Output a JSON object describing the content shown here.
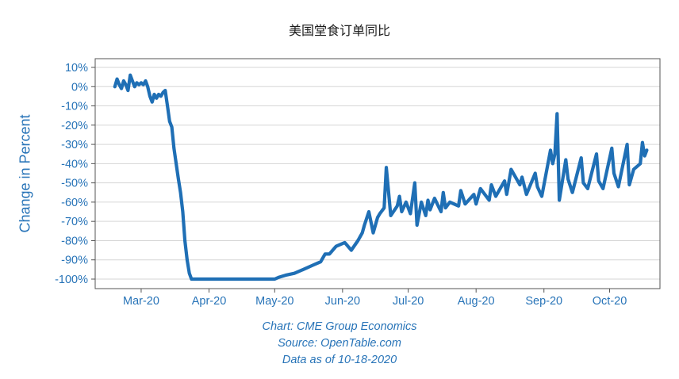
{
  "chart_data": {
    "type": "line",
    "title": "美国堂食订单同比",
    "xlabel": "",
    "ylabel": "Change in Percent",
    "xlim": [
      "2020-02-09",
      "2020-10-24"
    ],
    "ylim": [
      -100,
      10
    ],
    "yticks": [
      10,
      0,
      -10,
      -20,
      -30,
      -40,
      -50,
      -60,
      -70,
      -80,
      -90,
      -100
    ],
    "ytick_labels": [
      "10%",
      "0%",
      "-10%",
      "-20%",
      "-30%",
      "-40%",
      "-50%",
      "-60%",
      "-70%",
      "-80%",
      "-90%",
      "-100%"
    ],
    "xticks": [
      "2020-03-01",
      "2020-04-01",
      "2020-05-01",
      "2020-06-01",
      "2020-07-01",
      "2020-08-01",
      "2020-09-01",
      "2020-10-01"
    ],
    "xtick_labels": [
      "Mar-20",
      "Apr-20",
      "May-20",
      "Jun-20",
      "Jul-20",
      "Aug-20",
      "Sep-20",
      "Oct-20"
    ],
    "grid": "horizontal",
    "legend": "none",
    "color": "#1f6fb5",
    "captions": [
      "Chart: CME Group Economics",
      "Source: OpenTable.com",
      "Data as of 10-18-2020"
    ],
    "series": [
      {
        "x": [
          "2020-02-18",
          "2020-02-19",
          "2020-02-20",
          "2020-02-21",
          "2020-02-22",
          "2020-02-23",
          "2020-02-24",
          "2020-02-25",
          "2020-02-26",
          "2020-02-27",
          "2020-02-28",
          "2020-02-29",
          "2020-03-01",
          "2020-03-02",
          "2020-03-03",
          "2020-03-04",
          "2020-03-05",
          "2020-03-06",
          "2020-03-07",
          "2020-03-08",
          "2020-03-09",
          "2020-03-10",
          "2020-03-11",
          "2020-03-12",
          "2020-03-13",
          "2020-03-14",
          "2020-03-15",
          "2020-03-16",
          "2020-03-17",
          "2020-03-18",
          "2020-03-19",
          "2020-03-20",
          "2020-03-21",
          "2020-03-22",
          "2020-03-23",
          "2020-03-24",
          "2020-03-25",
          "2020-03-26",
          "2020-03-27",
          "2020-03-28",
          "2020-04-01",
          "2020-04-15",
          "2020-05-01",
          "2020-05-03",
          "2020-05-06",
          "2020-05-10",
          "2020-05-14",
          "2020-05-18",
          "2020-05-22",
          "2020-05-24",
          "2020-05-26",
          "2020-05-29",
          "2020-06-02",
          "2020-06-05",
          "2020-06-08",
          "2020-06-10",
          "2020-06-11",
          "2020-06-13",
          "2020-06-15",
          "2020-06-17",
          "2020-06-18",
          "2020-06-20",
          "2020-06-21",
          "2020-06-23",
          "2020-06-26",
          "2020-06-27",
          "2020-06-28",
          "2020-06-30",
          "2020-07-02",
          "2020-07-04",
          "2020-07-05",
          "2020-07-07",
          "2020-07-09",
          "2020-07-10",
          "2020-07-11",
          "2020-07-13",
          "2020-07-16",
          "2020-07-17",
          "2020-07-18",
          "2020-07-20",
          "2020-07-24",
          "2020-07-25",
          "2020-07-27",
          "2020-07-31",
          "2020-08-01",
          "2020-08-03",
          "2020-08-07",
          "2020-08-08",
          "2020-08-10",
          "2020-08-14",
          "2020-08-15",
          "2020-08-17",
          "2020-08-21",
          "2020-08-22",
          "2020-08-24",
          "2020-08-28",
          "2020-08-29",
          "2020-08-31",
          "2020-09-04",
          "2020-09-05",
          "2020-09-06",
          "2020-09-07",
          "2020-09-08",
          "2020-09-11",
          "2020-09-12",
          "2020-09-14",
          "2020-09-18",
          "2020-09-19",
          "2020-09-21",
          "2020-09-25",
          "2020-09-26",
          "2020-09-28",
          "2020-10-02",
          "2020-10-03",
          "2020-10-05",
          "2020-10-09",
          "2020-10-10",
          "2020-10-12",
          "2020-10-15",
          "2020-10-16",
          "2020-10-17",
          "2020-10-18"
        ],
        "y": [
          0,
          4,
          1,
          -1,
          3,
          1,
          -2,
          6,
          3,
          0,
          2,
          1,
          2,
          1,
          3,
          0,
          -5,
          -8,
          -4,
          -6,
          -4,
          -5,
          -3,
          -2,
          -10,
          -18,
          -21,
          -32,
          -40,
          -48,
          -55,
          -65,
          -80,
          -90,
          -97,
          -100,
          -100,
          -100,
          -100,
          -100,
          -100,
          -100,
          -100,
          -99,
          -98,
          -97,
          -95,
          -93,
          -91,
          -87,
          -87,
          -83,
          -81,
          -85,
          -80,
          -76,
          -72,
          -65,
          -76,
          -68,
          -66,
          -63,
          -42,
          -67,
          -62,
          -57,
          -65,
          -60,
          -66,
          -50,
          -72,
          -60,
          -67,
          -59,
          -64,
          -58,
          -65,
          -55,
          -63,
          -60,
          -62,
          -54,
          -61,
          -56,
          -61,
          -53,
          -59,
          -51,
          -57,
          -49,
          -56,
          -43,
          -51,
          -47,
          -56,
          -45,
          -52,
          -57,
          -33,
          -40,
          -35,
          -14,
          -59,
          -38,
          -48,
          -55,
          -37,
          -50,
          -53,
          -35,
          -49,
          -53,
          -32,
          -45,
          -52,
          -30,
          -51,
          -43,
          -40,
          -29,
          -36,
          -33
        ]
      }
    ]
  }
}
